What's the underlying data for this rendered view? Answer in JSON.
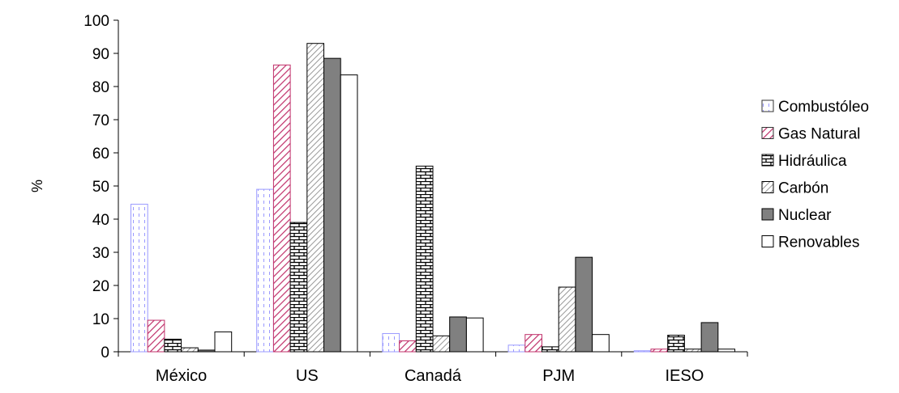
{
  "chart_data": {
    "type": "bar",
    "title": "",
    "xlabel": "",
    "ylabel": "%",
    "ylim": [
      0,
      100
    ],
    "yticks": [
      0,
      10,
      20,
      30,
      40,
      50,
      60,
      70,
      80,
      90,
      100
    ],
    "grid": false,
    "legend_position": "right",
    "categories": [
      "México",
      "US",
      "Canadá",
      "PJM",
      "IESO"
    ],
    "series": [
      {
        "name": "Combustóleo",
        "pattern": "dashed-vertical",
        "color": "#9999ff",
        "values": [
          44.5,
          49,
          5.5,
          2,
          0.3
        ]
      },
      {
        "name": "Gas Natural",
        "pattern": "diagonal-hatch",
        "color": "#c0306a",
        "values": [
          9.5,
          86.5,
          3.3,
          5.2,
          0.8
        ]
      },
      {
        "name": "Hidráulica",
        "pattern": "brick",
        "color": "#000000",
        "values": [
          3.8,
          39,
          56,
          1.5,
          5
        ]
      },
      {
        "name": "Carbón",
        "pattern": "light-diagonal",
        "color": "#808080",
        "values": [
          1.2,
          93,
          4.8,
          19.5,
          0.8
        ]
      },
      {
        "name": "Nuclear",
        "pattern": "solid",
        "color": "#808080",
        "values": [
          0.5,
          88.5,
          10.5,
          28.5,
          8.8
        ]
      },
      {
        "name": "Renovables",
        "pattern": "none",
        "color": "#ffffff",
        "values": [
          6,
          83.5,
          10.2,
          5.2,
          0.8
        ]
      }
    ]
  }
}
